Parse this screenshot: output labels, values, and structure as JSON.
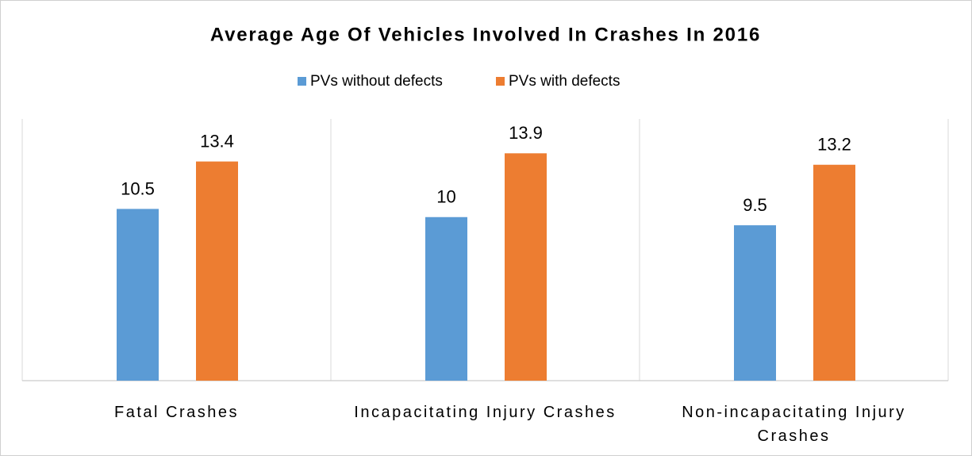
{
  "chart_data": {
    "type": "bar",
    "title": "Average Age Of Vehicles Involved In Crashes In 2016",
    "categories": [
      "Fatal Crashes",
      "Incapacitating Injury Crashes",
      "Non-incapacitating Injury Crashes"
    ],
    "series": [
      {
        "name": "PVs without defects",
        "color": "#5b9bd5",
        "values": [
          10.5,
          10,
          9.5
        ]
      },
      {
        "name": "PVs with defects",
        "color": "#ed7d31",
        "values": [
          13.4,
          13.9,
          13.2
        ]
      }
    ],
    "ylim": [
      0,
      16
    ],
    "legend": "top"
  }
}
